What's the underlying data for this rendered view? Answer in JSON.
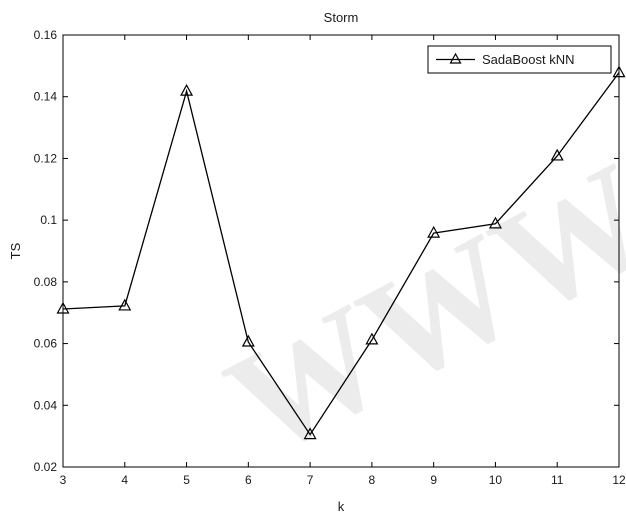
{
  "chart_data": {
    "type": "line",
    "title": "Storm",
    "xlabel": "k",
    "ylabel": "TS",
    "xlim": [
      3,
      12
    ],
    "ylim": [
      0.02,
      0.16
    ],
    "xticks": [
      "3",
      "4",
      "5",
      "6",
      "7",
      "8",
      "9",
      "10",
      "11",
      "12"
    ],
    "yticks": [
      "0.02",
      "0.04",
      "0.06",
      "0.08",
      "0.1",
      "0.12",
      "0.14",
      "0.16"
    ],
    "grid": false,
    "legend": "top-right",
    "x": [
      3,
      4,
      5,
      6,
      7,
      8,
      9,
      10,
      11,
      12
    ],
    "series": [
      {
        "name": "SadaBoost kNN",
        "marker": "triangle",
        "color": "#000000",
        "values": [
          0.0712,
          0.0722,
          0.1418,
          0.0605,
          0.0305,
          0.0612,
          0.0958,
          0.0988,
          0.1208,
          0.1478
        ]
      }
    ]
  },
  "watermark": "WWW"
}
